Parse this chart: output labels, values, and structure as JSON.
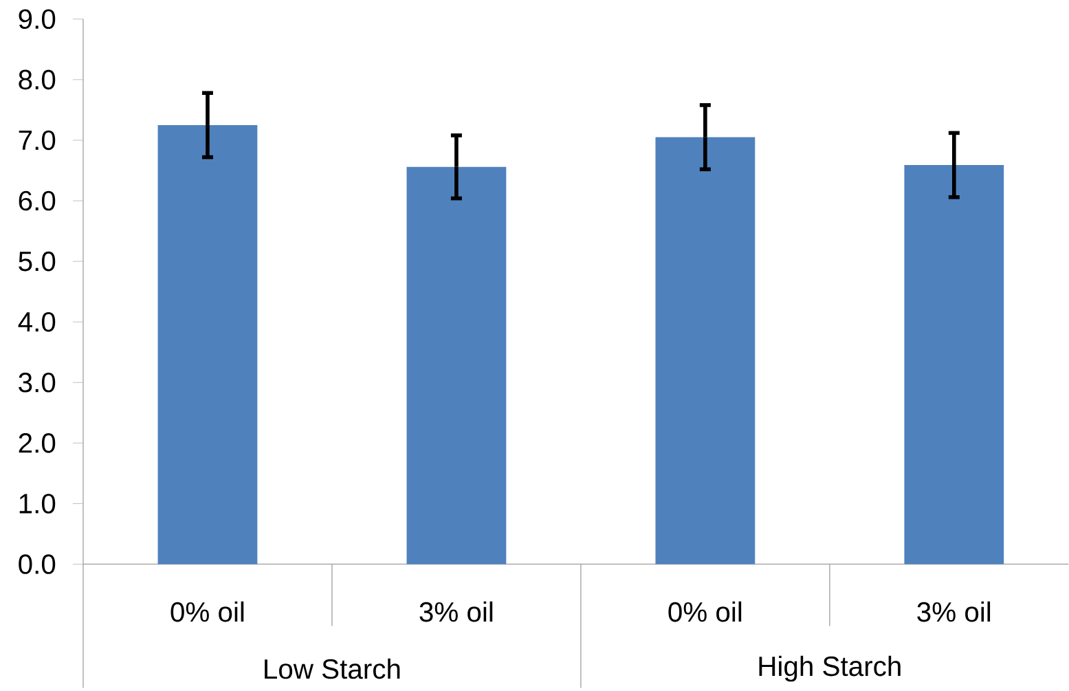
{
  "chart_data": {
    "type": "bar",
    "categories": [
      "0% oil",
      "3% oil",
      "0% oil",
      "3% oil"
    ],
    "values": [
      7.25,
      6.56,
      7.05,
      6.59
    ],
    "errors": [
      0.53,
      0.52,
      0.53,
      0.53
    ],
    "color": "#4f81bd",
    "ylim": [
      0,
      9
    ],
    "yticks": [
      {
        "value": 0,
        "label": "0.0"
      },
      {
        "value": 1,
        "label": "1.0"
      },
      {
        "value": 2,
        "label": "2.0"
      },
      {
        "value": 3,
        "label": "3.0"
      },
      {
        "value": 4,
        "label": "4.0"
      },
      {
        "value": 5,
        "label": "5.0"
      },
      {
        "value": 6,
        "label": "6.0"
      },
      {
        "value": 7,
        "label": "7.0"
      },
      {
        "value": 8,
        "label": "8.0"
      },
      {
        "value": 9,
        "label": "9.0"
      }
    ],
    "annotations": [
      "Low Starch",
      "High Starch"
    ]
  }
}
